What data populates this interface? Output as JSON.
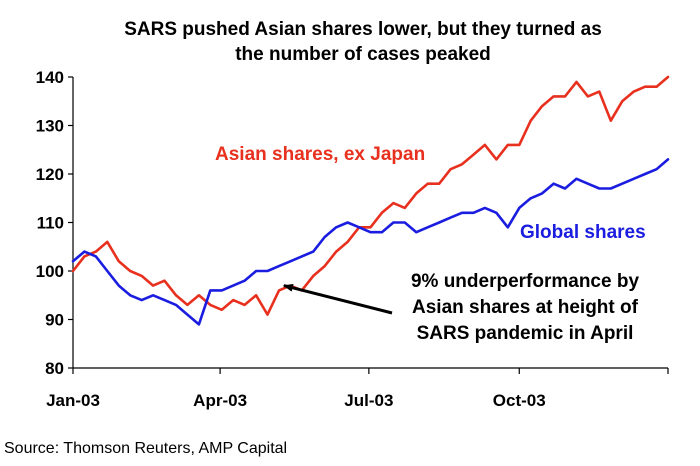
{
  "chart_data": {
    "type": "line",
    "title_lines": [
      "SARS pushed Asian shares lower, but they turned as",
      "the number of cases peaked"
    ],
    "xlabel": "",
    "ylabel": "",
    "ylim": [
      80,
      140
    ],
    "yticks": [
      80,
      90,
      100,
      110,
      120,
      130,
      140
    ],
    "xlim": [
      "2003-01-01",
      "2003-12-31"
    ],
    "xticks": [
      {
        "label": "Jan-03",
        "date": "2003-01-01"
      },
      {
        "label": "Apr-03",
        "date": "2003-04-01"
      },
      {
        "label": "Jul-03",
        "date": "2003-07-01"
      },
      {
        "label": "Oct-03",
        "date": "2003-10-01"
      }
    ],
    "grid": false,
    "series": [
      {
        "name": "Asian shares, ex Japan",
        "color": "#e8301e",
        "points": [
          [
            "2003-01-01",
            100
          ],
          [
            "2003-01-08",
            103
          ],
          [
            "2003-01-15",
            104
          ],
          [
            "2003-01-22",
            106
          ],
          [
            "2003-01-29",
            102
          ],
          [
            "2003-02-05",
            100
          ],
          [
            "2003-02-12",
            99
          ],
          [
            "2003-02-19",
            97
          ],
          [
            "2003-02-26",
            98
          ],
          [
            "2003-03-05",
            95
          ],
          [
            "2003-03-12",
            93
          ],
          [
            "2003-03-19",
            95
          ],
          [
            "2003-03-26",
            93
          ],
          [
            "2003-04-02",
            92
          ],
          [
            "2003-04-09",
            94
          ],
          [
            "2003-04-16",
            93
          ],
          [
            "2003-04-23",
            95
          ],
          [
            "2003-04-30",
            91
          ],
          [
            "2003-05-07",
            96
          ],
          [
            "2003-05-14",
            97
          ],
          [
            "2003-05-21",
            96
          ],
          [
            "2003-05-28",
            99
          ],
          [
            "2003-06-04",
            101
          ],
          [
            "2003-06-11",
            104
          ],
          [
            "2003-06-18",
            106
          ],
          [
            "2003-06-25",
            109
          ],
          [
            "2003-07-02",
            109
          ],
          [
            "2003-07-09",
            112
          ],
          [
            "2003-07-16",
            114
          ],
          [
            "2003-07-23",
            113
          ],
          [
            "2003-07-30",
            116
          ],
          [
            "2003-08-06",
            118
          ],
          [
            "2003-08-13",
            118
          ],
          [
            "2003-08-20",
            121
          ],
          [
            "2003-08-27",
            122
          ],
          [
            "2003-09-03",
            124
          ],
          [
            "2003-09-10",
            126
          ],
          [
            "2003-09-17",
            123
          ],
          [
            "2003-09-24",
            126
          ],
          [
            "2003-10-01",
            126
          ],
          [
            "2003-10-08",
            131
          ],
          [
            "2003-10-15",
            134
          ],
          [
            "2003-10-22",
            136
          ],
          [
            "2003-10-29",
            136
          ],
          [
            "2003-11-05",
            139
          ],
          [
            "2003-11-12",
            136
          ],
          [
            "2003-11-19",
            137
          ],
          [
            "2003-11-26",
            131
          ],
          [
            "2003-12-03",
            135
          ],
          [
            "2003-12-10",
            137
          ],
          [
            "2003-12-17",
            138
          ],
          [
            "2003-12-24",
            138
          ],
          [
            "2003-12-31",
            140
          ]
        ]
      },
      {
        "name": "Global shares",
        "color": "#1a1de0",
        "points": [
          [
            "2003-01-01",
            102
          ],
          [
            "2003-01-08",
            104
          ],
          [
            "2003-01-15",
            103
          ],
          [
            "2003-01-22",
            100
          ],
          [
            "2003-01-29",
            97
          ],
          [
            "2003-02-05",
            95
          ],
          [
            "2003-02-12",
            94
          ],
          [
            "2003-02-19",
            95
          ],
          [
            "2003-02-26",
            94
          ],
          [
            "2003-03-05",
            93
          ],
          [
            "2003-03-12",
            91
          ],
          [
            "2003-03-19",
            89
          ],
          [
            "2003-03-26",
            96
          ],
          [
            "2003-04-02",
            96
          ],
          [
            "2003-04-09",
            97
          ],
          [
            "2003-04-16",
            98
          ],
          [
            "2003-04-23",
            100
          ],
          [
            "2003-04-30",
            100
          ],
          [
            "2003-05-07",
            101
          ],
          [
            "2003-05-14",
            102
          ],
          [
            "2003-05-21",
            103
          ],
          [
            "2003-05-28",
            104
          ],
          [
            "2003-06-04",
            107
          ],
          [
            "2003-06-11",
            109
          ],
          [
            "2003-06-18",
            110
          ],
          [
            "2003-06-25",
            109
          ],
          [
            "2003-07-02",
            108
          ],
          [
            "2003-07-09",
            108
          ],
          [
            "2003-07-16",
            110
          ],
          [
            "2003-07-23",
            110
          ],
          [
            "2003-07-30",
            108
          ],
          [
            "2003-08-06",
            109
          ],
          [
            "2003-08-13",
            110
          ],
          [
            "2003-08-20",
            111
          ],
          [
            "2003-08-27",
            112
          ],
          [
            "2003-09-03",
            112
          ],
          [
            "2003-09-10",
            113
          ],
          [
            "2003-09-17",
            112
          ],
          [
            "2003-09-24",
            109
          ],
          [
            "2003-10-01",
            113
          ],
          [
            "2003-10-08",
            115
          ],
          [
            "2003-10-15",
            116
          ],
          [
            "2003-10-22",
            118
          ],
          [
            "2003-10-29",
            117
          ],
          [
            "2003-11-05",
            119
          ],
          [
            "2003-11-12",
            118
          ],
          [
            "2003-11-19",
            117
          ],
          [
            "2003-11-26",
            117
          ],
          [
            "2003-12-03",
            118
          ],
          [
            "2003-12-10",
            119
          ],
          [
            "2003-12-17",
            120
          ],
          [
            "2003-12-24",
            121
          ],
          [
            "2003-12-31",
            123
          ]
        ]
      }
    ],
    "annotations": [
      {
        "lines": [
          "9% underperformance by",
          "Asian shares at height of",
          "SARS pandemic in April"
        ],
        "arrow_to": [
          "2003-05-10",
          97
        ]
      }
    ],
    "source": "Source: Thomson Reuters, AMP Capital"
  }
}
